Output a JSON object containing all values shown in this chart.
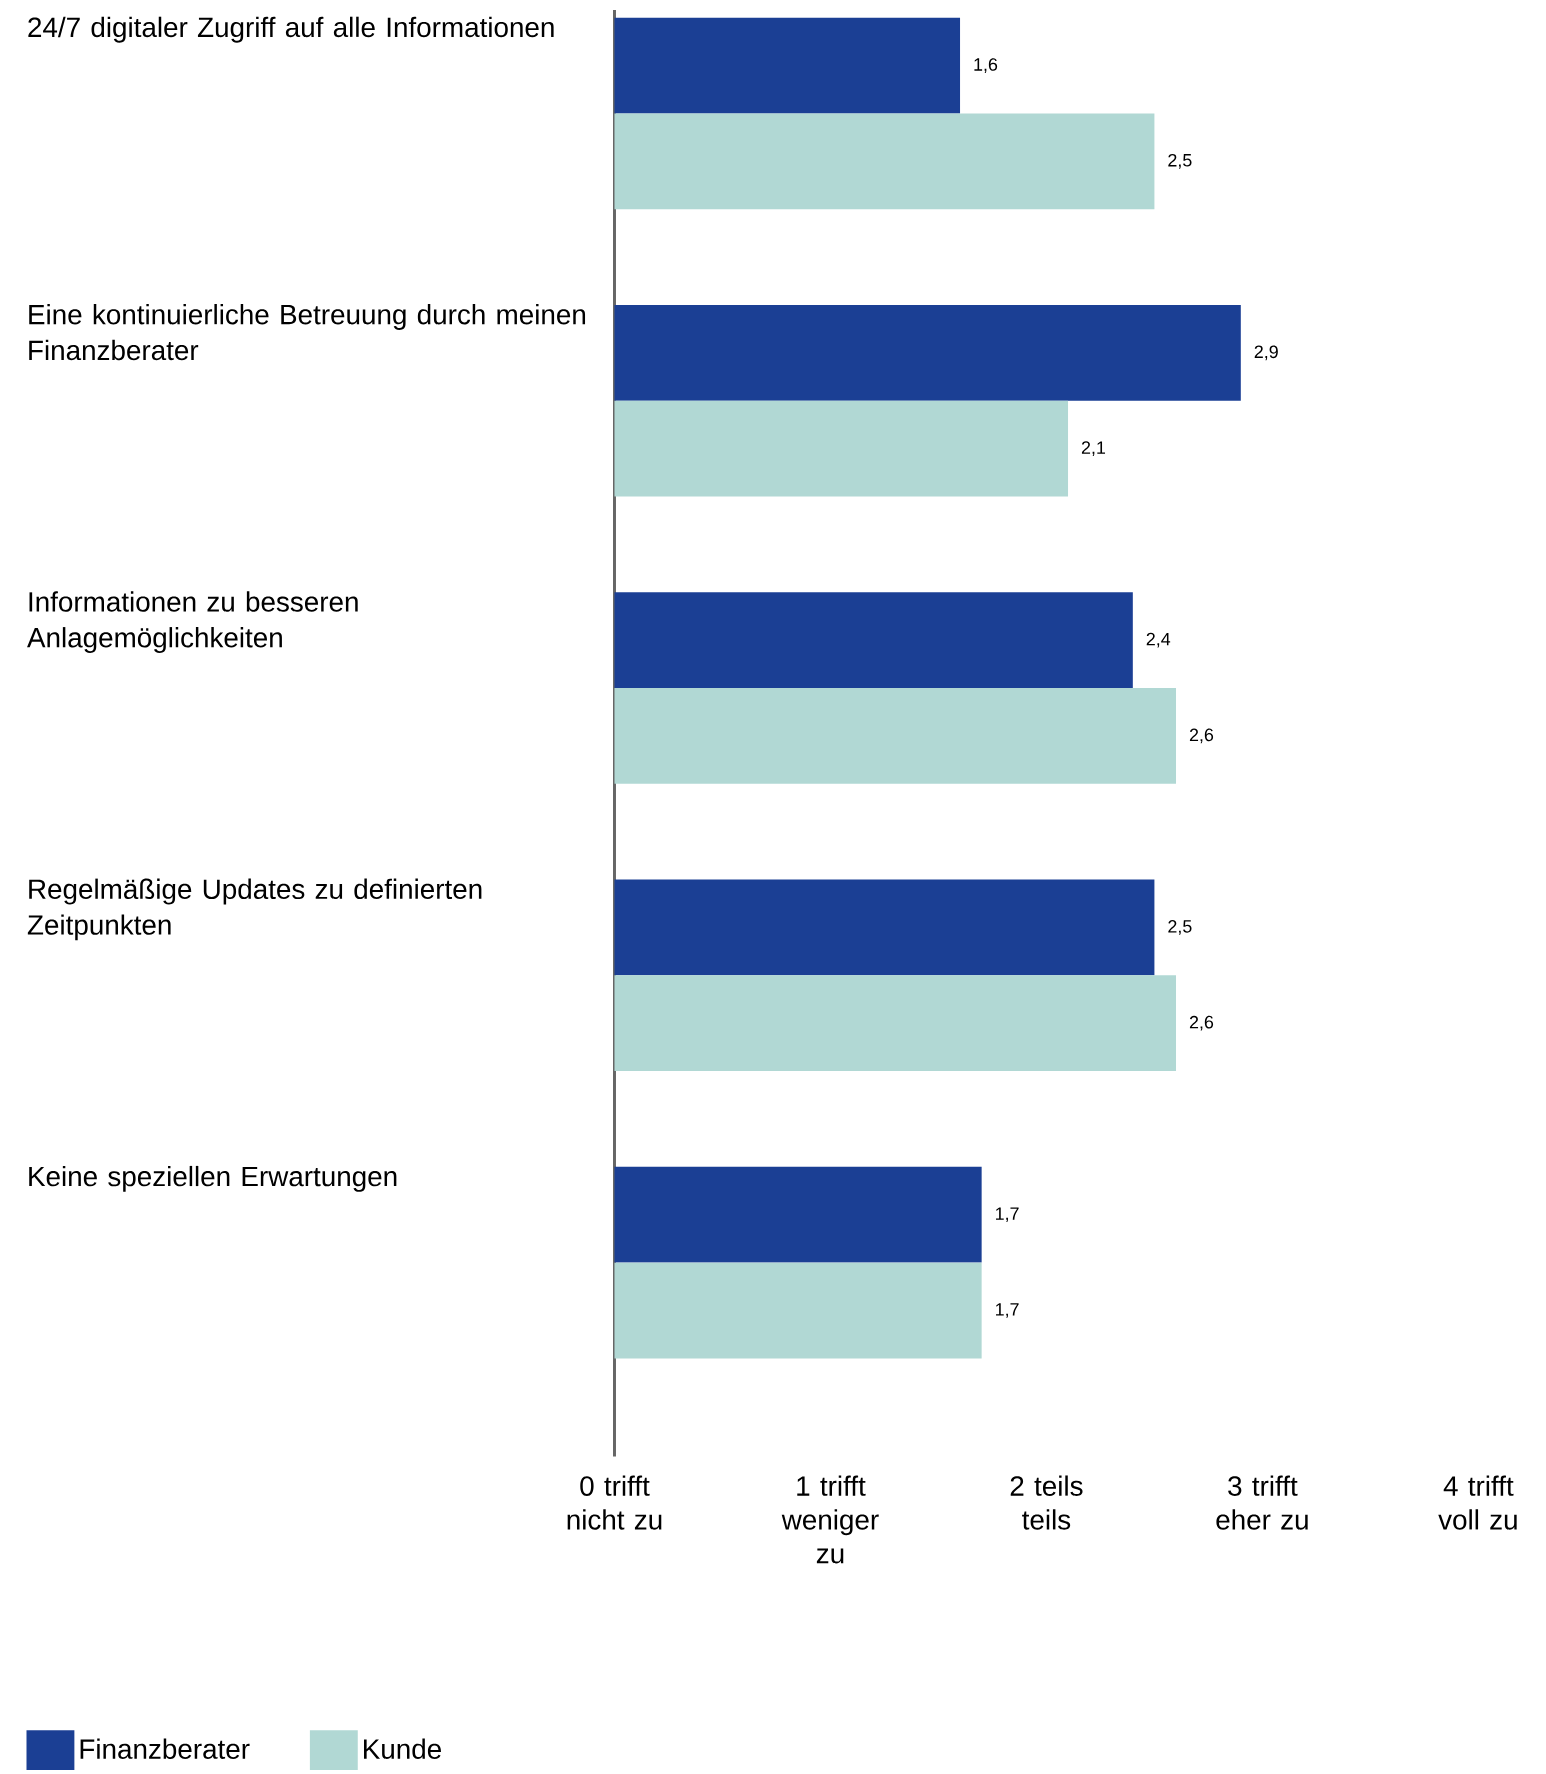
{
  "chart_data": {
    "type": "bar",
    "orientation": "horizontal",
    "categories": [
      "24/7 digitaler Zugriff auf alle Informationen",
      "Eine kontinuierliche Betreuung durch meinen Finanzberater",
      "Informationen zu besseren Anlagemöglichkeiten",
      "Regelmäßige Updates zu definierten Zeitpunkten",
      "Keine speziellen Erwartungen"
    ],
    "series": [
      {
        "name": "Finanzberater",
        "color": "#1b3f94",
        "values": [
          1.6,
          2.9,
          2.4,
          2.5,
          1.7
        ],
        "value_labels": [
          "1,6",
          "2,9",
          "2,4",
          "2,5",
          "1,7"
        ]
      },
      {
        "name": "Kunde",
        "color": "#b1d8d4",
        "values": [
          2.5,
          2.1,
          2.6,
          2.6,
          1.7
        ],
        "value_labels": [
          "2,5",
          "2,1",
          "2,6",
          "2,6",
          "1,7"
        ]
      }
    ],
    "xlim": [
      0,
      4
    ],
    "xticks": [
      {
        "value": 0,
        "label": "0 trifft nicht zu"
      },
      {
        "value": 1,
        "label": "1 trifft weniger zu"
      },
      {
        "value": 2,
        "label": "2 teils teils"
      },
      {
        "value": 3,
        "label": "3 trifft eher zu"
      },
      {
        "value": 4,
        "label": "4 trifft voll zu"
      }
    ],
    "grid": false,
    "legend": "bottom left"
  }
}
